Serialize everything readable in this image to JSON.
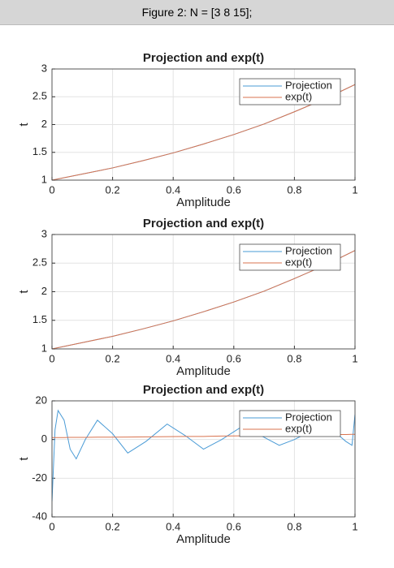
{
  "window_title": "Figure 2: N = [3 8 15];",
  "chart_data": [
    {
      "type": "line",
      "title": "Projection and exp(t)",
      "xlabel": "Amplitude",
      "ylabel": "t",
      "x": [
        0,
        0.1,
        0.2,
        0.3,
        0.4,
        0.5,
        0.6,
        0.7,
        0.8,
        0.9,
        1
      ],
      "series": [
        {
          "name": "Projection",
          "color": "#4a9bd6",
          "values": [
            1,
            1.11,
            1.22,
            1.35,
            1.49,
            1.65,
            1.82,
            2.01,
            2.23,
            2.46,
            2.72
          ]
        },
        {
          "name": "exp(t)",
          "color": "#d9734f",
          "values": [
            1,
            1.11,
            1.22,
            1.35,
            1.49,
            1.65,
            1.82,
            2.01,
            2.23,
            2.46,
            2.72
          ]
        }
      ],
      "xlim": [
        0,
        1
      ],
      "xticks": [
        0,
        0.2,
        0.4,
        0.6,
        0.8,
        1
      ],
      "ylim": [
        1,
        3
      ],
      "yticks": [
        1,
        1.5,
        2,
        2.5,
        3
      ],
      "grid": true,
      "legend": "northeast"
    },
    {
      "type": "line",
      "title": "Projection and exp(t)",
      "xlabel": "Amplitude",
      "ylabel": "t",
      "x": [
        0,
        0.1,
        0.2,
        0.3,
        0.4,
        0.5,
        0.6,
        0.7,
        0.8,
        0.9,
        1
      ],
      "series": [
        {
          "name": "Projection",
          "color": "#4a9bd6",
          "values": [
            1,
            1.11,
            1.22,
            1.35,
            1.49,
            1.65,
            1.82,
            2.01,
            2.23,
            2.46,
            2.72
          ]
        },
        {
          "name": "exp(t)",
          "color": "#d9734f",
          "values": [
            1,
            1.11,
            1.22,
            1.35,
            1.49,
            1.65,
            1.82,
            2.01,
            2.23,
            2.46,
            2.72
          ]
        }
      ],
      "xlim": [
        0,
        1
      ],
      "xticks": [
        0,
        0.2,
        0.4,
        0.6,
        0.8,
        1
      ],
      "ylim": [
        1,
        3
      ],
      "yticks": [
        1,
        1.5,
        2,
        2.5,
        3
      ],
      "grid": true,
      "legend": "northeast"
    },
    {
      "type": "line",
      "title": "Projection and exp(t)",
      "xlabel": "Amplitude",
      "ylabel": "t",
      "x": [
        0,
        0.01,
        0.02,
        0.04,
        0.06,
        0.08,
        0.11,
        0.15,
        0.2,
        0.25,
        0.31,
        0.38,
        0.44,
        0.5,
        0.56,
        0.63,
        0.69,
        0.75,
        0.8,
        0.85,
        0.9,
        0.94,
        0.97,
        0.99,
        1
      ],
      "series": [
        {
          "name": "Projection",
          "color": "#4a9bd6",
          "values": [
            -32,
            5,
            15,
            10,
            -5,
            -10,
            0,
            10,
            3,
            -7,
            -1,
            8,
            2,
            -5,
            0,
            7,
            2,
            -3,
            0,
            4,
            2,
            3,
            -1,
            -3,
            13
          ]
        },
        {
          "name": "exp(t)",
          "color": "#d9734f",
          "values": [
            1,
            1,
            1,
            1,
            1.1,
            1.1,
            1.1,
            1.2,
            1.2,
            1.3,
            1.4,
            1.5,
            1.6,
            1.6,
            1.8,
            1.9,
            2,
            2.1,
            2.2,
            2.3,
            2.5,
            2.6,
            2.6,
            2.7,
            2.7
          ]
        }
      ],
      "xlim": [
        0,
        1
      ],
      "xticks": [
        0,
        0.2,
        0.4,
        0.6,
        0.8,
        1
      ],
      "ylim": [
        -40,
        20
      ],
      "yticks": [
        -40,
        -20,
        0,
        20
      ],
      "grid": true,
      "legend": "northeast"
    }
  ]
}
